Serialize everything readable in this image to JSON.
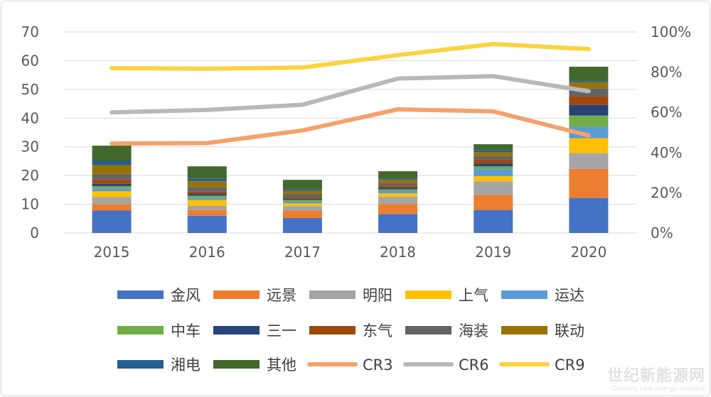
{
  "chart_data": {
    "type": "bar",
    "stacked": true,
    "categories": [
      "2015",
      "2016",
      "2017",
      "2018",
      "2019",
      "2020"
    ],
    "y_left": {
      "lim": [
        0,
        70
      ],
      "ticks": [
        "0",
        "10",
        "20",
        "30",
        "40",
        "50",
        "60",
        "70"
      ]
    },
    "y_right": {
      "lim": [
        0,
        100
      ],
      "ticks": [
        "0%",
        "20%",
        "40%",
        "60%",
        "80%",
        "100%"
      ]
    },
    "grid": true,
    "legend_position": "bottom",
    "series": [
      {
        "name": "金风",
        "color": "#4472c4",
        "values": [
          7.8,
          6.0,
          5.2,
          6.6,
          8.0,
          12.2
        ]
      },
      {
        "name": "远景",
        "color": "#ed7d31",
        "values": [
          2.2,
          2.0,
          2.6,
          3.5,
          5.3,
          10.1
        ]
      },
      {
        "name": "明阳",
        "color": "#a5a5a5",
        "values": [
          2.5,
          1.5,
          1.5,
          2.5,
          4.7,
          5.5
        ]
      },
      {
        "name": "上气",
        "color": "#ffc000",
        "values": [
          2.0,
          2.0,
          1.0,
          1.2,
          1.8,
          5.2
        ]
      },
      {
        "name": "运达",
        "color": "#5b9bd5",
        "values": [
          1.0,
          0.8,
          0.6,
          0.8,
          2.4,
          4.0
        ]
      },
      {
        "name": "中车",
        "color": "#70ad47",
        "values": [
          0.8,
          0.7,
          0.6,
          0.6,
          1.0,
          3.9
        ]
      },
      {
        "name": "三一",
        "color": "#264478",
        "values": [
          0.8,
          0.6,
          0.4,
          0.6,
          1.0,
          3.7
        ]
      },
      {
        "name": "东气",
        "color": "#9e480e",
        "values": [
          1.5,
          0.8,
          0.6,
          0.7,
          1.3,
          3.0
        ]
      },
      {
        "name": "海装",
        "color": "#636363",
        "values": [
          2.0,
          1.6,
          1.2,
          0.9,
          1.3,
          2.8
        ]
      },
      {
        "name": "联动",
        "color": "#997300",
        "values": [
          3.0,
          2.0,
          1.0,
          1.1,
          1.3,
          2.0
        ]
      },
      {
        "name": "湘电",
        "color": "#255e91",
        "values": [
          1.5,
          1.0,
          0.6,
          0.5,
          0.8,
          0.5
        ]
      },
      {
        "name": "其他",
        "color": "#43682b",
        "values": [
          5.3,
          4.2,
          3.2,
          2.5,
          2.0,
          5.0
        ]
      }
    ],
    "lines": [
      {
        "name": "CR3",
        "color": "#f4a26b",
        "axis": "right",
        "values": [
          44.5,
          44.7,
          51.0,
          61.5,
          60.5,
          48.5
        ]
      },
      {
        "name": "CR6",
        "color": "#b8b8b8",
        "axis": "right",
        "values": [
          60.0,
          61.2,
          63.8,
          76.8,
          78.0,
          70.5
        ]
      },
      {
        "name": "CR9",
        "color": "#fbd33d",
        "axis": "right",
        "values": [
          82.0,
          81.7,
          82.3,
          88.5,
          94.0,
          91.5
        ]
      }
    ]
  },
  "watermark": {
    "text": "世纪新能源网",
    "subtext": "Century new energy network"
  }
}
